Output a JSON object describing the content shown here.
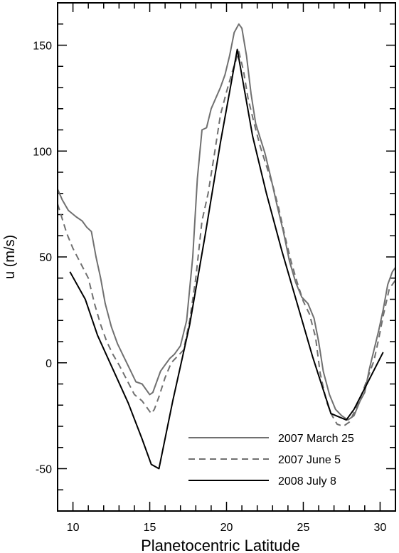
{
  "chart_data": {
    "type": "line",
    "title": "",
    "xlabel": "Planetocentric Latitude",
    "ylabel": "u (m/s)",
    "xlim": [
      9,
      31
    ],
    "ylim": [
      -70,
      170
    ],
    "x_major_ticks": [
      10,
      15,
      20,
      25,
      30
    ],
    "y_major_ticks": [
      -50,
      0,
      50,
      100,
      150
    ],
    "grid": false,
    "legend_position": "bottom-right",
    "series": [
      {
        "name": "2007 March 25",
        "style": "solid",
        "color": "#707070",
        "points": [
          [
            9.0,
            82
          ],
          [
            9.3,
            77
          ],
          [
            9.7,
            72
          ],
          [
            10.2,
            69
          ],
          [
            10.6,
            67
          ],
          [
            10.9,
            64
          ],
          [
            11.2,
            62
          ],
          [
            11.5,
            50
          ],
          [
            11.8,
            40
          ],
          [
            12.1,
            28
          ],
          [
            12.5,
            17
          ],
          [
            12.9,
            9
          ],
          [
            13.3,
            3
          ],
          [
            13.7,
            -3
          ],
          [
            14.1,
            -9
          ],
          [
            14.5,
            -10
          ],
          [
            14.8,
            -13
          ],
          [
            15.0,
            -15
          ],
          [
            15.2,
            -14
          ],
          [
            15.4,
            -10
          ],
          [
            15.7,
            -4
          ],
          [
            16.0,
            -1
          ],
          [
            16.3,
            2
          ],
          [
            16.6,
            4
          ],
          [
            17.0,
            8
          ],
          [
            17.4,
            20
          ],
          [
            17.8,
            50
          ],
          [
            18.1,
            87
          ],
          [
            18.4,
            110
          ],
          [
            18.7,
            111
          ],
          [
            19.0,
            120
          ],
          [
            19.3,
            125
          ],
          [
            19.6,
            130
          ],
          [
            19.9,
            136
          ],
          [
            20.2,
            145
          ],
          [
            20.5,
            156
          ],
          [
            20.8,
            160
          ],
          [
            21.0,
            158
          ],
          [
            21.3,
            145
          ],
          [
            21.6,
            127
          ],
          [
            21.9,
            113
          ],
          [
            22.2,
            106
          ],
          [
            22.5,
            99
          ],
          [
            22.9,
            87
          ],
          [
            23.3,
            74
          ],
          [
            23.7,
            62
          ],
          [
            24.1,
            48
          ],
          [
            24.5,
            38
          ],
          [
            24.9,
            31
          ],
          [
            25.3,
            28
          ],
          [
            25.7,
            21
          ],
          [
            26.0,
            10
          ],
          [
            26.3,
            -4
          ],
          [
            26.7,
            -15
          ],
          [
            27.1,
            -22
          ],
          [
            27.5,
            -25
          ],
          [
            27.9,
            -27
          ],
          [
            28.3,
            -25
          ],
          [
            28.7,
            -18
          ],
          [
            29.0,
            -14
          ],
          [
            29.3,
            -3
          ],
          [
            29.6,
            6
          ],
          [
            29.9,
            15
          ],
          [
            30.2,
            25
          ],
          [
            30.5,
            37
          ],
          [
            30.8,
            43
          ],
          [
            31.0,
            45
          ]
        ]
      },
      {
        "name": "2007 June 5",
        "style": "dashed",
        "color": "#707070",
        "points": [
          [
            9.0,
            75
          ],
          [
            9.3,
            68
          ],
          [
            9.6,
            61
          ],
          [
            10.0,
            54
          ],
          [
            10.5,
            47
          ],
          [
            11.0,
            40
          ],
          [
            11.4,
            28
          ],
          [
            11.8,
            18
          ],
          [
            12.2,
            10
          ],
          [
            12.6,
            4
          ],
          [
            13.0,
            -1
          ],
          [
            13.5,
            -8
          ],
          [
            14.0,
            -15
          ],
          [
            14.5,
            -18
          ],
          [
            14.9,
            -22
          ],
          [
            15.1,
            -24
          ],
          [
            15.3,
            -22
          ],
          [
            15.6,
            -16
          ],
          [
            16.0,
            -7
          ],
          [
            16.4,
            0
          ],
          [
            16.8,
            3
          ],
          [
            17.2,
            6
          ],
          [
            17.6,
            20
          ],
          [
            18.0,
            40
          ],
          [
            18.4,
            67
          ],
          [
            18.8,
            80
          ],
          [
            19.2,
            98
          ],
          [
            19.6,
            117
          ],
          [
            20.0,
            128
          ],
          [
            20.4,
            138
          ],
          [
            20.8,
            147
          ],
          [
            21.1,
            138
          ],
          [
            21.4,
            125
          ],
          [
            21.8,
            113
          ],
          [
            22.2,
            102
          ],
          [
            22.6,
            93
          ],
          [
            23.0,
            84
          ],
          [
            23.4,
            73
          ],
          [
            23.8,
            60
          ],
          [
            24.2,
            48
          ],
          [
            24.6,
            38
          ],
          [
            25.0,
            29
          ],
          [
            25.4,
            23
          ],
          [
            25.8,
            12
          ],
          [
            26.1,
            -5
          ],
          [
            26.5,
            -18
          ],
          [
            26.8,
            -24
          ],
          [
            27.2,
            -29
          ],
          [
            27.6,
            -30
          ],
          [
            28.0,
            -28
          ],
          [
            28.4,
            -22
          ],
          [
            28.8,
            -15
          ],
          [
            29.2,
            -7
          ],
          [
            29.6,
            1
          ],
          [
            29.9,
            11
          ],
          [
            30.2,
            22
          ],
          [
            30.6,
            35
          ],
          [
            31.0,
            39
          ]
        ]
      },
      {
        "name": "2008 July 8",
        "style": "solid",
        "color": "#000000",
        "points": [
          [
            9.8,
            43
          ],
          [
            10.8,
            30
          ],
          [
            11.6,
            13
          ],
          [
            12.6,
            -3
          ],
          [
            13.6,
            -19
          ],
          [
            14.5,
            -36
          ],
          [
            15.1,
            -48
          ],
          [
            15.6,
            -50
          ],
          [
            16.5,
            -18
          ],
          [
            17.6,
            18
          ],
          [
            18.6,
            60
          ],
          [
            19.6,
            104
          ],
          [
            20.7,
            148
          ],
          [
            21.7,
            107
          ],
          [
            22.6,
            80
          ],
          [
            23.6,
            53
          ],
          [
            24.6,
            28
          ],
          [
            25.6,
            3
          ],
          [
            26.8,
            -24
          ],
          [
            27.8,
            -27
          ],
          [
            28.3,
            -22
          ],
          [
            30.2,
            5
          ]
        ]
      }
    ]
  }
}
